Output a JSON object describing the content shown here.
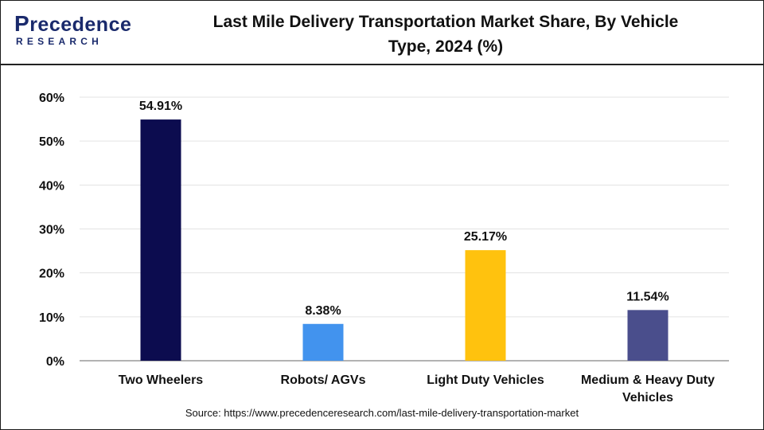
{
  "logo": {
    "brand_initial": "P",
    "brand_rest": "recedence",
    "tagline": "RESEARCH"
  },
  "colors": {
    "logo": "#1a2a6c",
    "grid": "#e3e3e3",
    "axis": "#9a9a9a"
  },
  "chart_data": {
    "type": "bar",
    "title": "Last Mile Delivery Transportation Market Share, By Vehicle Type, 2024 (%)",
    "title_lines": [
      "Last Mile Delivery Transportation Market Share, By Vehicle",
      "Type, 2024 (%)"
    ],
    "xlabel": "",
    "ylabel": "",
    "ylim": [
      0,
      60
    ],
    "yticks": [
      0,
      10,
      20,
      30,
      40,
      50,
      60
    ],
    "ytick_labels": [
      "0%",
      "10%",
      "20%",
      "30%",
      "40%",
      "50%",
      "60%"
    ],
    "grid": true,
    "categories": [
      {
        "label_lines": [
          "Two Wheelers"
        ],
        "value": 54.91,
        "data_label": "54.91%",
        "color": "#0c0c4f"
      },
      {
        "label_lines": [
          "Robots/ AGVs"
        ],
        "value": 8.38,
        "data_label": "8.38%",
        "color": "#4293ee"
      },
      {
        "label_lines": [
          "Light Duty Vehicles"
        ],
        "value": 25.17,
        "data_label": "25.17%",
        "color": "#ffc20e"
      },
      {
        "label_lines": [
          "Medium & Heavy Duty",
          "Vehicles"
        ],
        "value": 11.54,
        "data_label": "11.54%",
        "color": "#4a4e8c"
      }
    ]
  },
  "source": "Source: https://www.precedenceresearch.com/last-mile-delivery-transportation-market"
}
